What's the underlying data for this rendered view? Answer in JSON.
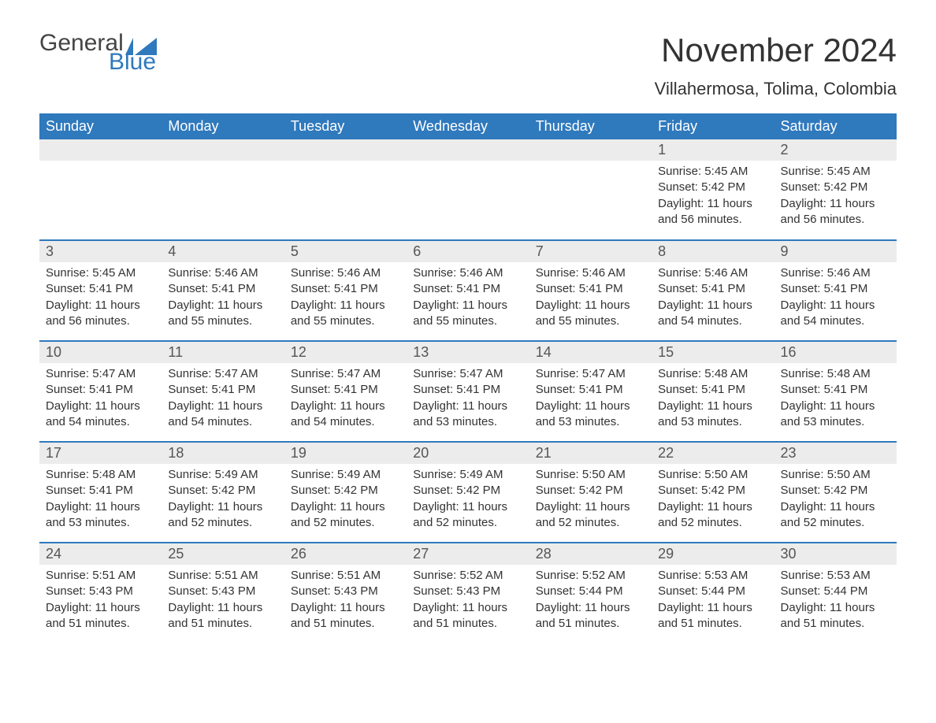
{
  "logo": {
    "text1": "General",
    "text2": "Blue",
    "icon_color": "#2f79bd"
  },
  "title": "November 2024",
  "location": "Villahermosa, Tolima, Colombia",
  "colors": {
    "header_bg": "#2f79bd",
    "header_text": "#ffffff",
    "daybar_bg": "#ececec",
    "daybar_text": "#555555",
    "body_text": "#333333",
    "row_border": "#2f79bd"
  },
  "columns": [
    "Sunday",
    "Monday",
    "Tuesday",
    "Wednesday",
    "Thursday",
    "Friday",
    "Saturday"
  ],
  "weeks": [
    [
      null,
      null,
      null,
      null,
      null,
      {
        "n": "1",
        "sunrise": "5:45 AM",
        "sunset": "5:42 PM",
        "daylight": "11 hours and 56 minutes."
      },
      {
        "n": "2",
        "sunrise": "5:45 AM",
        "sunset": "5:42 PM",
        "daylight": "11 hours and 56 minutes."
      }
    ],
    [
      {
        "n": "3",
        "sunrise": "5:45 AM",
        "sunset": "5:41 PM",
        "daylight": "11 hours and 56 minutes."
      },
      {
        "n": "4",
        "sunrise": "5:46 AM",
        "sunset": "5:41 PM",
        "daylight": "11 hours and 55 minutes."
      },
      {
        "n": "5",
        "sunrise": "5:46 AM",
        "sunset": "5:41 PM",
        "daylight": "11 hours and 55 minutes."
      },
      {
        "n": "6",
        "sunrise": "5:46 AM",
        "sunset": "5:41 PM",
        "daylight": "11 hours and 55 minutes."
      },
      {
        "n": "7",
        "sunrise": "5:46 AM",
        "sunset": "5:41 PM",
        "daylight": "11 hours and 55 minutes."
      },
      {
        "n": "8",
        "sunrise": "5:46 AM",
        "sunset": "5:41 PM",
        "daylight": "11 hours and 54 minutes."
      },
      {
        "n": "9",
        "sunrise": "5:46 AM",
        "sunset": "5:41 PM",
        "daylight": "11 hours and 54 minutes."
      }
    ],
    [
      {
        "n": "10",
        "sunrise": "5:47 AM",
        "sunset": "5:41 PM",
        "daylight": "11 hours and 54 minutes."
      },
      {
        "n": "11",
        "sunrise": "5:47 AM",
        "sunset": "5:41 PM",
        "daylight": "11 hours and 54 minutes."
      },
      {
        "n": "12",
        "sunrise": "5:47 AM",
        "sunset": "5:41 PM",
        "daylight": "11 hours and 54 minutes."
      },
      {
        "n": "13",
        "sunrise": "5:47 AM",
        "sunset": "5:41 PM",
        "daylight": "11 hours and 53 minutes."
      },
      {
        "n": "14",
        "sunrise": "5:47 AM",
        "sunset": "5:41 PM",
        "daylight": "11 hours and 53 minutes."
      },
      {
        "n": "15",
        "sunrise": "5:48 AM",
        "sunset": "5:41 PM",
        "daylight": "11 hours and 53 minutes."
      },
      {
        "n": "16",
        "sunrise": "5:48 AM",
        "sunset": "5:41 PM",
        "daylight": "11 hours and 53 minutes."
      }
    ],
    [
      {
        "n": "17",
        "sunrise": "5:48 AM",
        "sunset": "5:41 PM",
        "daylight": "11 hours and 53 minutes."
      },
      {
        "n": "18",
        "sunrise": "5:49 AM",
        "sunset": "5:42 PM",
        "daylight": "11 hours and 52 minutes."
      },
      {
        "n": "19",
        "sunrise": "5:49 AM",
        "sunset": "5:42 PM",
        "daylight": "11 hours and 52 minutes."
      },
      {
        "n": "20",
        "sunrise": "5:49 AM",
        "sunset": "5:42 PM",
        "daylight": "11 hours and 52 minutes."
      },
      {
        "n": "21",
        "sunrise": "5:50 AM",
        "sunset": "5:42 PM",
        "daylight": "11 hours and 52 minutes."
      },
      {
        "n": "22",
        "sunrise": "5:50 AM",
        "sunset": "5:42 PM",
        "daylight": "11 hours and 52 minutes."
      },
      {
        "n": "23",
        "sunrise": "5:50 AM",
        "sunset": "5:42 PM",
        "daylight": "11 hours and 52 minutes."
      }
    ],
    [
      {
        "n": "24",
        "sunrise": "5:51 AM",
        "sunset": "5:43 PM",
        "daylight": "11 hours and 51 minutes."
      },
      {
        "n": "25",
        "sunrise": "5:51 AM",
        "sunset": "5:43 PM",
        "daylight": "11 hours and 51 minutes."
      },
      {
        "n": "26",
        "sunrise": "5:51 AM",
        "sunset": "5:43 PM",
        "daylight": "11 hours and 51 minutes."
      },
      {
        "n": "27",
        "sunrise": "5:52 AM",
        "sunset": "5:43 PM",
        "daylight": "11 hours and 51 minutes."
      },
      {
        "n": "28",
        "sunrise": "5:52 AM",
        "sunset": "5:44 PM",
        "daylight": "11 hours and 51 minutes."
      },
      {
        "n": "29",
        "sunrise": "5:53 AM",
        "sunset": "5:44 PM",
        "daylight": "11 hours and 51 minutes."
      },
      {
        "n": "30",
        "sunrise": "5:53 AM",
        "sunset": "5:44 PM",
        "daylight": "11 hours and 51 minutes."
      }
    ]
  ],
  "labels": {
    "sunrise": "Sunrise: ",
    "sunset": "Sunset: ",
    "daylight": "Daylight: "
  }
}
